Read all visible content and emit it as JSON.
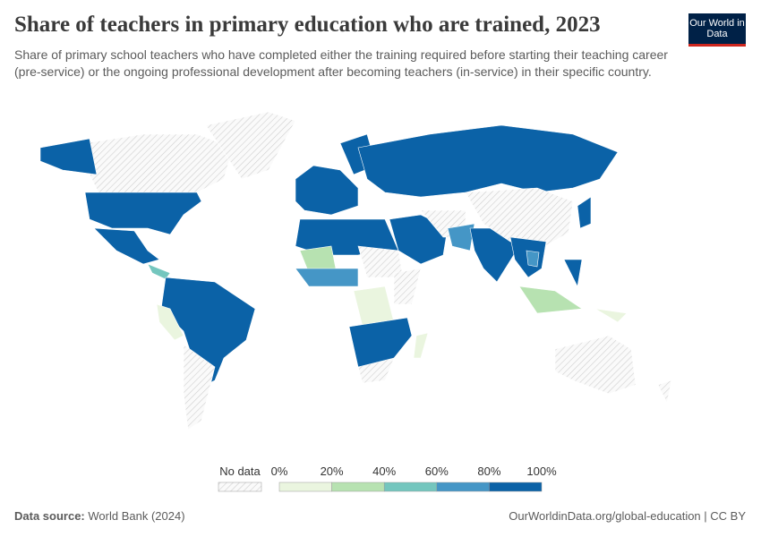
{
  "header": {
    "title": "Share of teachers in primary education who are trained, 2023",
    "subtitle": "Share of primary school teachers who have completed either the training required before starting their teaching career (pre-service) or the ongoing professional development after becoming teachers (in-service) in their specific country.",
    "logo": "Our World in Data"
  },
  "legend": {
    "no_data": "No data",
    "labels": [
      "0%",
      "20%",
      "40%",
      "60%",
      "80%",
      "100%"
    ],
    "colors": [
      "#eaf5df",
      "#b7e2b1",
      "#74c6be",
      "#4596c6",
      "#0b62a7"
    ]
  },
  "footer": {
    "source_label": "Data source:",
    "source": "World Bank (2024)",
    "url": "OurWorldinData.org/global-education | CC BY"
  }
}
